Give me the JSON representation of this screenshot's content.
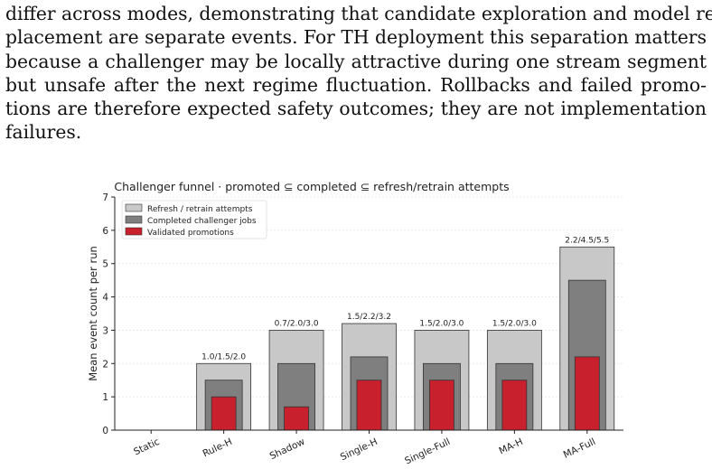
{
  "paragraph": {
    "lines": [
      "differ across modes, demonstrating that candidate exploration and model re-",
      "placement are separate events. For TH deployment this separation matters",
      "because a challenger may be locally attractive during one stream segment",
      "but unsafe after the next regime fluctuation. Rollbacks and failed promo-",
      "tions are therefore expected safety outcomes; they are not implementation",
      "failures."
    ]
  },
  "chart_data": {
    "type": "bar",
    "title": "Challenger funnel  ·  promoted ⊆ completed ⊆ refresh/retrain attempts",
    "ylabel": "Mean event count per run",
    "xlabel": "",
    "ylim": [
      0,
      7
    ],
    "yticks": [
      0,
      1,
      2,
      3,
      4,
      5,
      6,
      7
    ],
    "grid": "horizontal",
    "legend_position": "top-left",
    "categories": [
      "Static",
      "Rule-H",
      "Shadow",
      "Single-H",
      "Single-Full",
      "MA-H",
      "MA-Full"
    ],
    "series": [
      {
        "name": "Refresh / retrain attempts",
        "color": "#c8c8c8",
        "values": [
          0,
          2.0,
          3.0,
          3.2,
          3.0,
          3.0,
          5.5
        ]
      },
      {
        "name": "Completed challenger jobs",
        "color": "#7f7f7f",
        "values": [
          0,
          1.5,
          2.0,
          2.2,
          2.0,
          2.0,
          4.5
        ]
      },
      {
        "name": "Validated promotions",
        "color": "#c8202c",
        "values": [
          0,
          1.0,
          0.7,
          1.5,
          1.5,
          1.5,
          2.2
        ]
      }
    ],
    "bar_labels": [
      "",
      "1.0/1.5/2.0",
      "0.7/2.0/3.0",
      "1.5/2.2/3.2",
      "1.5/2.0/3.0",
      "1.5/2.0/3.0",
      "2.2/4.5/5.5"
    ]
  }
}
